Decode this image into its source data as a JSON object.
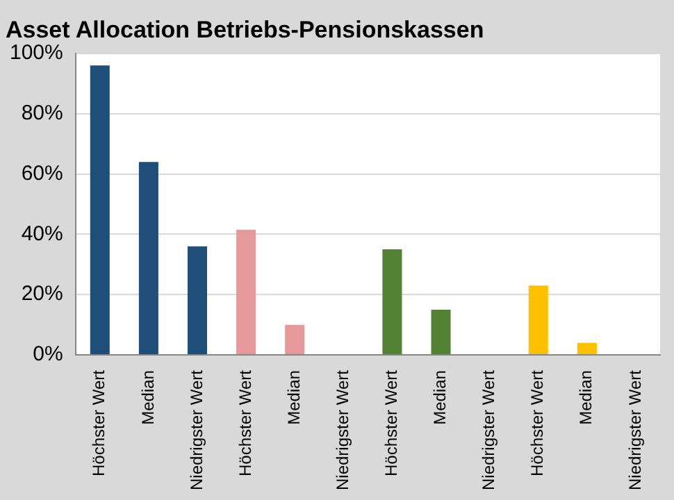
{
  "chart_data": {
    "type": "bar",
    "title": "Asset Allocation Betriebs-Pensionskassen",
    "categories": [
      "Höchster Wert",
      "Median",
      "Niedrigster Wert",
      "Höchster Wert",
      "Median",
      "Niedrigster Wert",
      "Höchster Wert",
      "Median",
      "Niedrigster Wert",
      "Höchster Wert",
      "Median",
      "Niedrigster Wert"
    ],
    "values": [
      96,
      64,
      36,
      41.5,
      10,
      0,
      35,
      15,
      0,
      23,
      4,
      0
    ],
    "colors": [
      "#1f4e79",
      "#1f4e79",
      "#1f4e79",
      "#e6999a",
      "#e6999a",
      "#e6999a",
      "#548235",
      "#548235",
      "#548235",
      "#ffc000",
      "#ffc000",
      "#ffc000"
    ],
    "ylim": [
      0,
      100
    ],
    "yticks": [
      {
        "value": 0,
        "label": "0%"
      },
      {
        "value": 20,
        "label": "20%"
      },
      {
        "value": 40,
        "label": "40%"
      },
      {
        "value": 60,
        "label": "60%"
      },
      {
        "value": 80,
        "label": "80%"
      },
      {
        "value": 100,
        "label": "100%"
      }
    ],
    "grid": "y",
    "legend": false
  }
}
